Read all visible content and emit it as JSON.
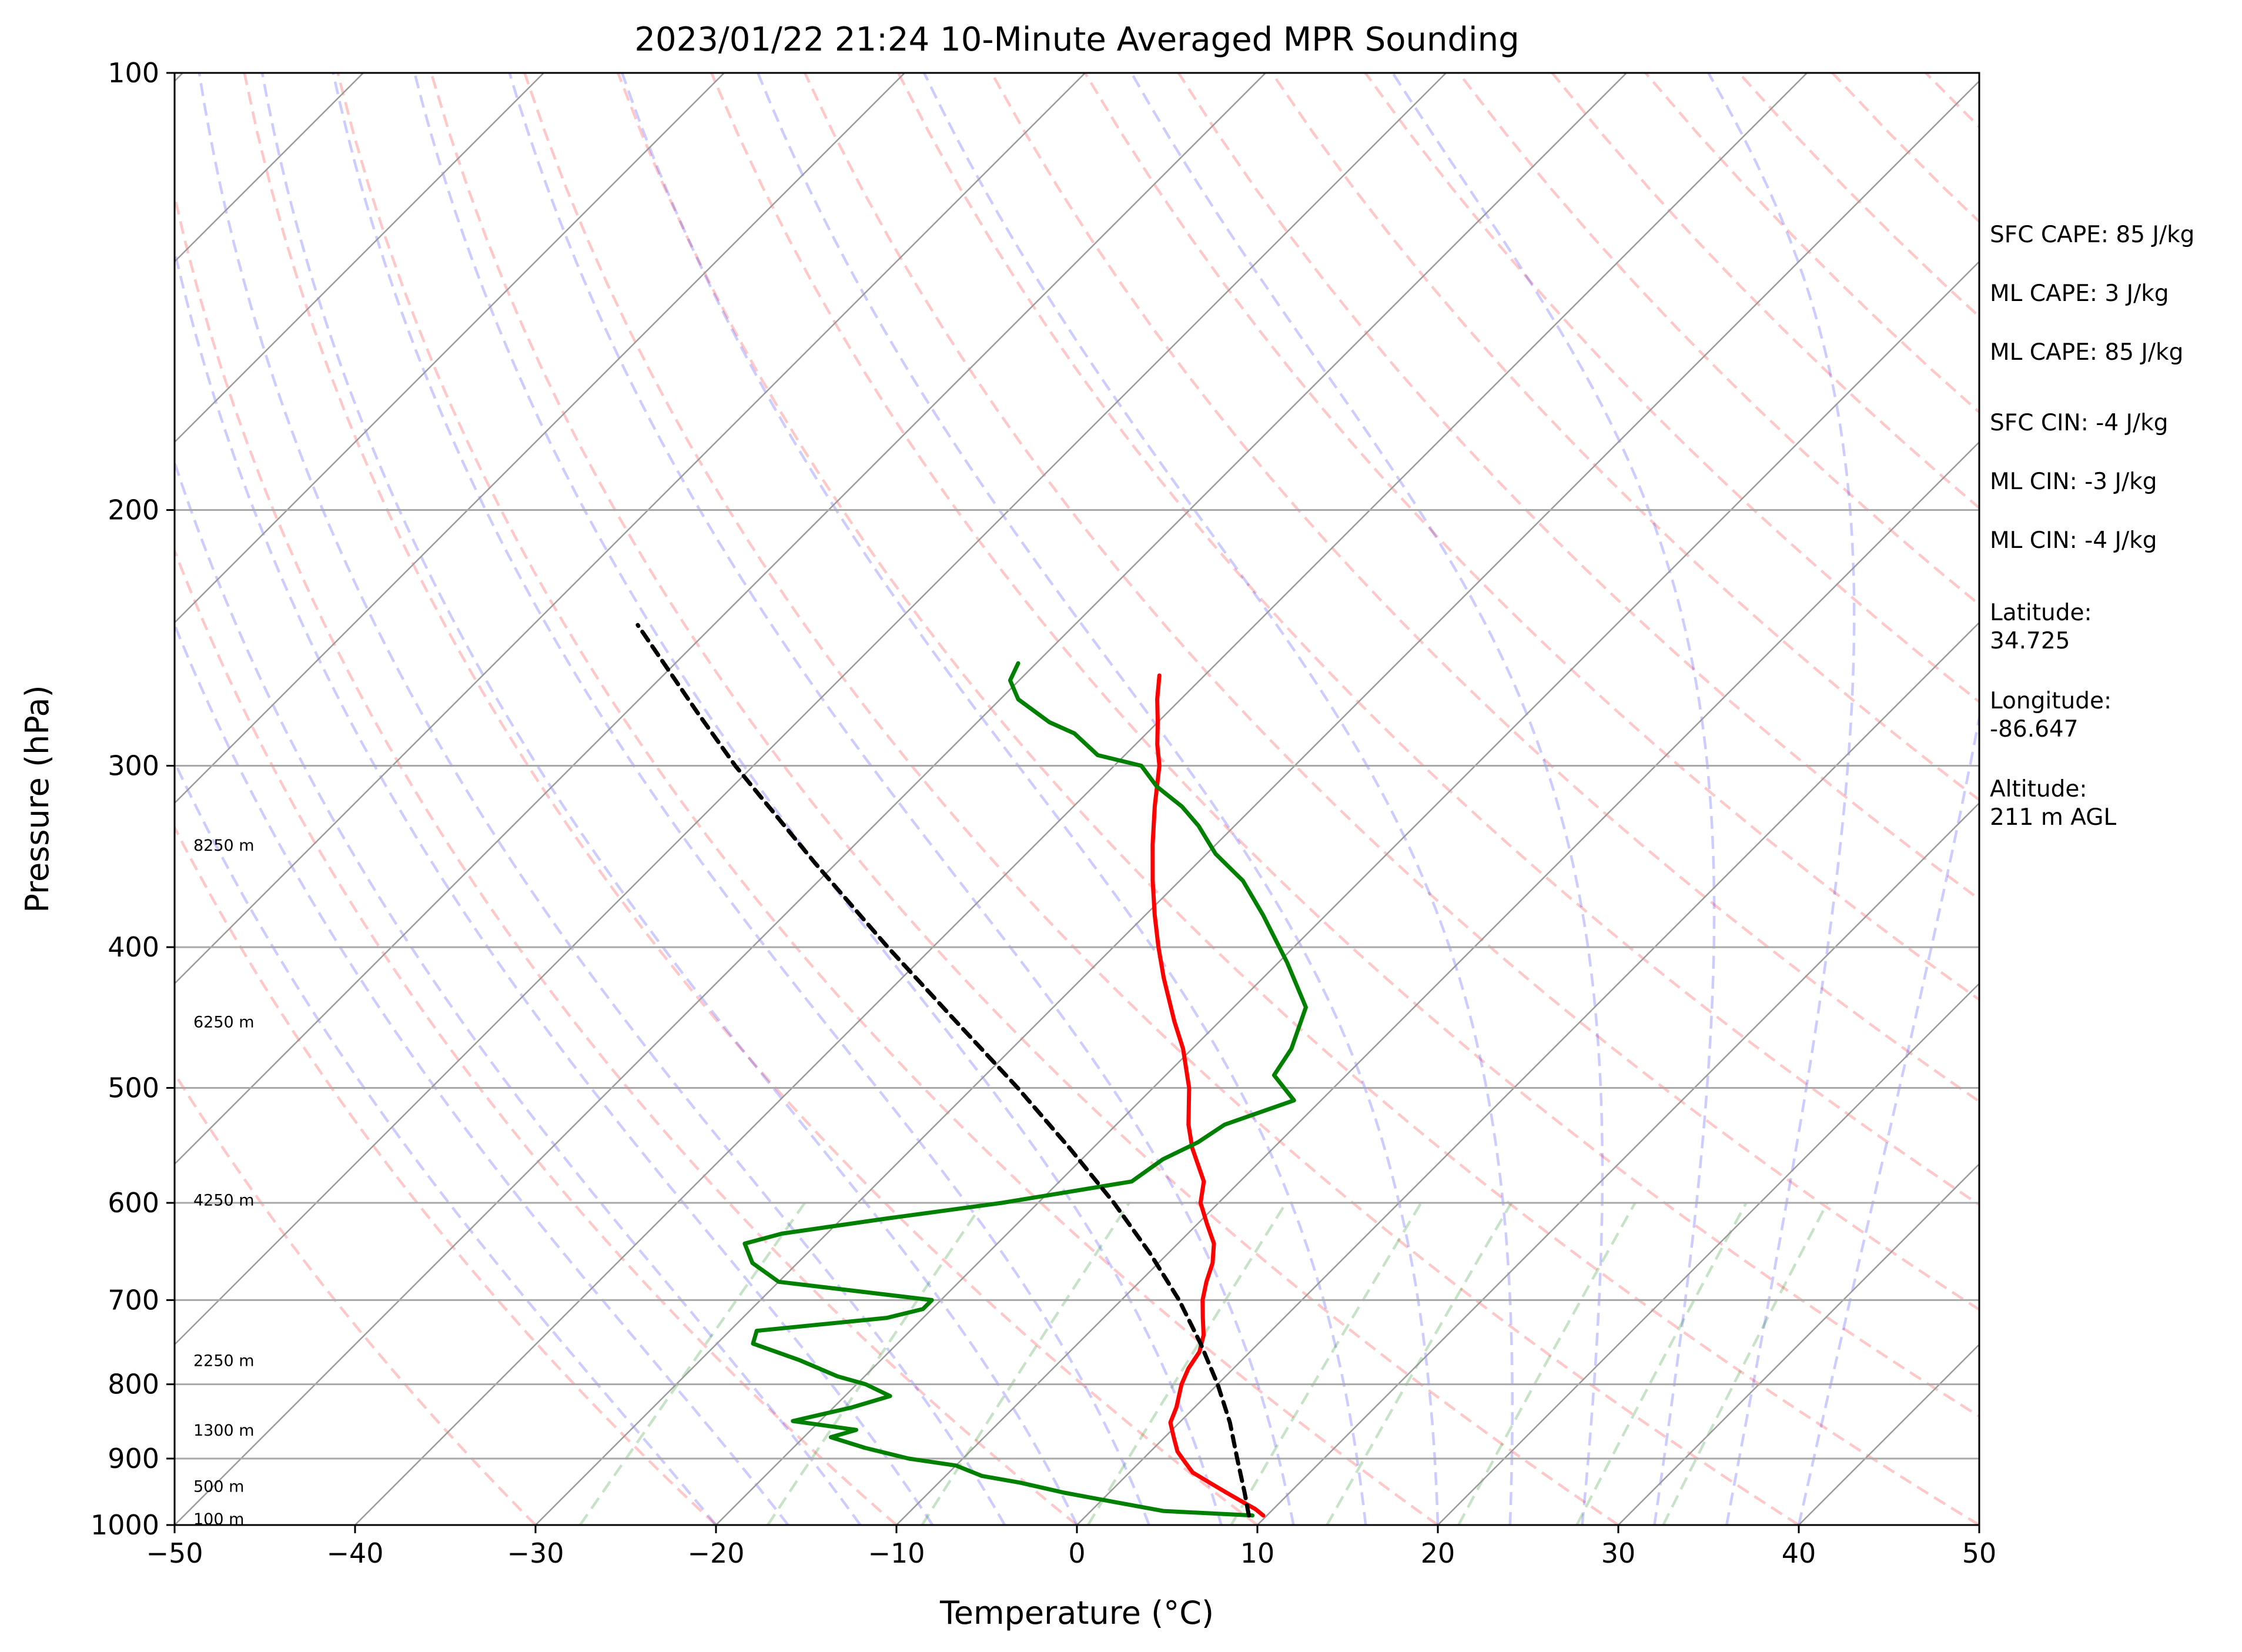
{
  "chart_data": {
    "type": "line",
    "title": "2023/01/22 21:24 10-Minute Averaged MPR Sounding",
    "xlabel": "Temperature (°C)",
    "ylabel": "Pressure (hPa)",
    "xlim": [
      -50,
      50
    ],
    "ylim": [
      1000,
      100
    ],
    "yscale": "log",
    "skew": true,
    "grid": true,
    "x_ticks": [
      -50,
      -40,
      -30,
      -20,
      -10,
      0,
      10,
      20,
      30,
      40,
      50
    ],
    "x_tick_labels": [
      "−50",
      "−40",
      "−30",
      "−20",
      "−10",
      "0",
      "10",
      "20",
      "30",
      "40",
      "50"
    ],
    "y_ticks": [
      1000,
      900,
      800,
      700,
      600,
      500,
      400,
      300,
      200,
      100
    ],
    "y_tick_labels": [
      "1000",
      "900",
      "800",
      "700",
      "600",
      "500",
      "400",
      "300",
      "200",
      "100"
    ],
    "height_labels": [
      {
        "p": 990,
        "text": "100 m"
      },
      {
        "p": 940,
        "text": "500 m"
      },
      {
        "p": 860,
        "text": "1300 m"
      },
      {
        "p": 770,
        "text": "2250 m"
      },
      {
        "p": 597,
        "text": "4250 m"
      },
      {
        "p": 450,
        "text": "6250 m"
      },
      {
        "p": 340,
        "text": "8250 m"
      }
    ],
    "annotations": [
      "SFC CAPE: 85 J/kg",
      "ML CAPE: 3 J/kg",
      "ML CAPE: 85 J/kg",
      "SFC CIN: -4 J/kg",
      "ML CIN: -3 J/kg",
      "ML CIN: -4 J/kg",
      "Latitude:\n34.725",
      "Longitude:\n-86.647",
      "Altitude:\n211 m AGL"
    ],
    "series": [
      {
        "role": "temperature",
        "color": "#ff0000",
        "p": [
          985,
          975,
          965,
          950,
          935,
          920,
          905,
          890,
          870,
          850,
          830,
          800,
          780,
          760,
          740,
          720,
          700,
          680,
          660,
          640,
          620,
          600,
          580,
          550,
          530,
          500,
          470,
          450,
          420,
          400,
          380,
          360,
          340,
          320,
          300,
          290,
          280,
          270,
          260
        ],
        "x": [
          9.8,
          9.0,
          8.0,
          6.5,
          5.0,
          3.5,
          2.5,
          1.5,
          0.5,
          -0.5,
          -1.0,
          -2.0,
          -2.5,
          -2.8,
          -3.5,
          -4.5,
          -5.5,
          -6.3,
          -7.0,
          -8.0,
          -9.5,
          -11.0,
          -12.0,
          -14.5,
          -16.0,
          -18.0,
          -20.5,
          -22.5,
          -25.5,
          -27.5,
          -29.5,
          -31.5,
          -33.5,
          -35.5,
          -37.5,
          -38.8,
          -40.0,
          -41.3,
          -42.5
        ]
      },
      {
        "role": "dewpoint",
        "color": "#008000",
        "p": [
          985,
          978,
          965,
          950,
          935,
          925,
          910,
          900,
          885,
          870,
          860,
          848,
          830,
          815,
          800,
          790,
          770,
          750,
          735,
          720,
          710,
          700,
          680,
          660,
          640,
          630,
          615,
          600,
          580,
          560,
          545,
          530,
          510,
          490,
          470,
          440,
          410,
          380,
          360,
          345,
          330,
          320,
          310,
          300,
          295,
          285,
          280,
          270,
          262,
          255
        ],
        "x": [
          9.2,
          4.0,
          1.0,
          -2.5,
          -5.5,
          -8.0,
          -10.0,
          -13.0,
          -16.0,
          -18.5,
          -17.5,
          -21.5,
          -19.0,
          -17.5,
          -19.5,
          -21.5,
          -24.5,
          -28.0,
          -28.5,
          -22.0,
          -20.5,
          -20.5,
          -30.0,
          -32.5,
          -34.0,
          -32.5,
          -27.5,
          -22.0,
          -16.0,
          -15.5,
          -14.5,
          -14.0,
          -11.5,
          -14.0,
          -14.5,
          -16.0,
          -19.5,
          -23.5,
          -26.5,
          -29.5,
          -32.0,
          -34.0,
          -36.5,
          -38.5,
          -41.5,
          -44.0,
          -46.0,
          -49.0,
          -50.5,
          -51.0
        ]
      },
      {
        "role": "parcel",
        "color": "#000000",
        "p": [
          985,
          950,
          900,
          850,
          800,
          750,
          700,
          650,
          600,
          550,
          500,
          450,
          400,
          350,
          300,
          275,
          250,
          240
        ],
        "x": [
          9.0,
          7.5,
          5.2,
          2.8,
          0.0,
          -3.2,
          -6.8,
          -11.0,
          -15.8,
          -21.3,
          -27.5,
          -34.6,
          -42.5,
          -51.2,
          -61.0,
          -66.2,
          -71.8,
          -74.2
        ]
      }
    ]
  }
}
